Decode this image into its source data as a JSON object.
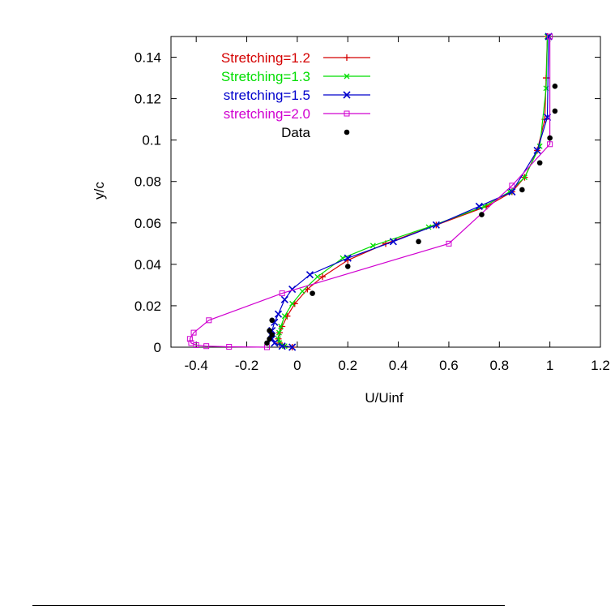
{
  "chart_data": {
    "type": "line",
    "title": "",
    "xlabel": "U/Uinf",
    "ylabel": "y/c",
    "xlim": [
      -0.5,
      1.2
    ],
    "ylim": [
      0,
      0.15
    ],
    "xticks": [
      -0.4,
      -0.2,
      0,
      0.2,
      0.4,
      0.6,
      0.8,
      1,
      1.2
    ],
    "xtick_labels": [
      "-0.4",
      "-0.2",
      "0",
      "0.2",
      "0.4",
      "0.6",
      "0.8",
      "1",
      "1.2"
    ],
    "yticks": [
      0,
      0.02,
      0.04,
      0.06,
      0.08,
      0.1,
      0.12,
      0.14
    ],
    "ytick_labels": [
      "0",
      "0.02",
      "0.04",
      "0.06",
      "0.08",
      "0.1",
      "0.12",
      "0.14"
    ],
    "grid": false,
    "legend_position": "top-left",
    "series": [
      {
        "name": "Stretching=1.2",
        "color": "#d40000",
        "marker": "plus",
        "x": [
          -0.02,
          -0.05,
          -0.07,
          -0.075,
          -0.07,
          -0.06,
          -0.04,
          -0.01,
          0.04,
          0.1,
          0.2,
          0.35,
          0.55,
          0.75,
          0.85,
          0.9,
          0.95,
          0.98,
          0.985,
          0.99
        ],
        "y": [
          0.0,
          0.0005,
          0.002,
          0.004,
          0.007,
          0.01,
          0.015,
          0.021,
          0.028,
          0.034,
          0.042,
          0.05,
          0.059,
          0.068,
          0.075,
          0.082,
          0.095,
          0.11,
          0.13,
          0.15
        ]
      },
      {
        "name": "Stretching=1.3",
        "color": "#00dd00",
        "marker": "cross",
        "x": [
          -0.02,
          -0.05,
          -0.07,
          -0.075,
          -0.072,
          -0.065,
          -0.05,
          -0.02,
          0.02,
          0.08,
          0.18,
          0.3,
          0.52,
          0.74,
          0.84,
          0.9,
          0.96,
          0.985,
          0.99
        ],
        "y": [
          0.0,
          0.0005,
          0.002,
          0.004,
          0.007,
          0.01,
          0.015,
          0.021,
          0.027,
          0.034,
          0.043,
          0.049,
          0.058,
          0.068,
          0.075,
          0.082,
          0.097,
          0.125,
          0.15
        ]
      },
      {
        "name": "stretching=1.5",
        "color": "#0000cc",
        "marker": "x",
        "x": [
          -0.02,
          -0.06,
          -0.09,
          -0.1,
          -0.1,
          -0.09,
          -0.075,
          -0.05,
          -0.02,
          0.05,
          0.2,
          0.38,
          0.55,
          0.72,
          0.85,
          0.95,
          0.99,
          0.995
        ],
        "y": [
          0.0,
          0.0005,
          0.002,
          0.004,
          0.008,
          0.012,
          0.016,
          0.023,
          0.028,
          0.035,
          0.043,
          0.051,
          0.059,
          0.068,
          0.075,
          0.095,
          0.111,
          0.15
        ]
      },
      {
        "name": "stretching=2.0",
        "color": "#d000d0",
        "marker": "square",
        "x": [
          -0.12,
          -0.27,
          -0.36,
          -0.4,
          -0.42,
          -0.425,
          -0.41,
          -0.35,
          -0.06,
          0.6,
          0.85,
          1.0,
          1.0
        ],
        "y": [
          0.0,
          0.0002,
          0.0005,
          0.001,
          0.002,
          0.004,
          0.007,
          0.013,
          0.026,
          0.05,
          0.078,
          0.098,
          0.15
        ]
      },
      {
        "name": "Data",
        "color": "#000000",
        "marker": "dot",
        "style": "points",
        "x": [
          -0.12,
          -0.11,
          -0.1,
          -0.11,
          -0.1,
          0.06,
          0.2,
          0.48,
          0.73,
          0.89,
          0.96,
          1.0,
          1.02,
          1.02
        ],
        "y": [
          0.002,
          0.004,
          0.006,
          0.008,
          0.013,
          0.026,
          0.039,
          0.051,
          0.064,
          0.076,
          0.089,
          0.101,
          0.114,
          0.126
        ]
      }
    ]
  }
}
